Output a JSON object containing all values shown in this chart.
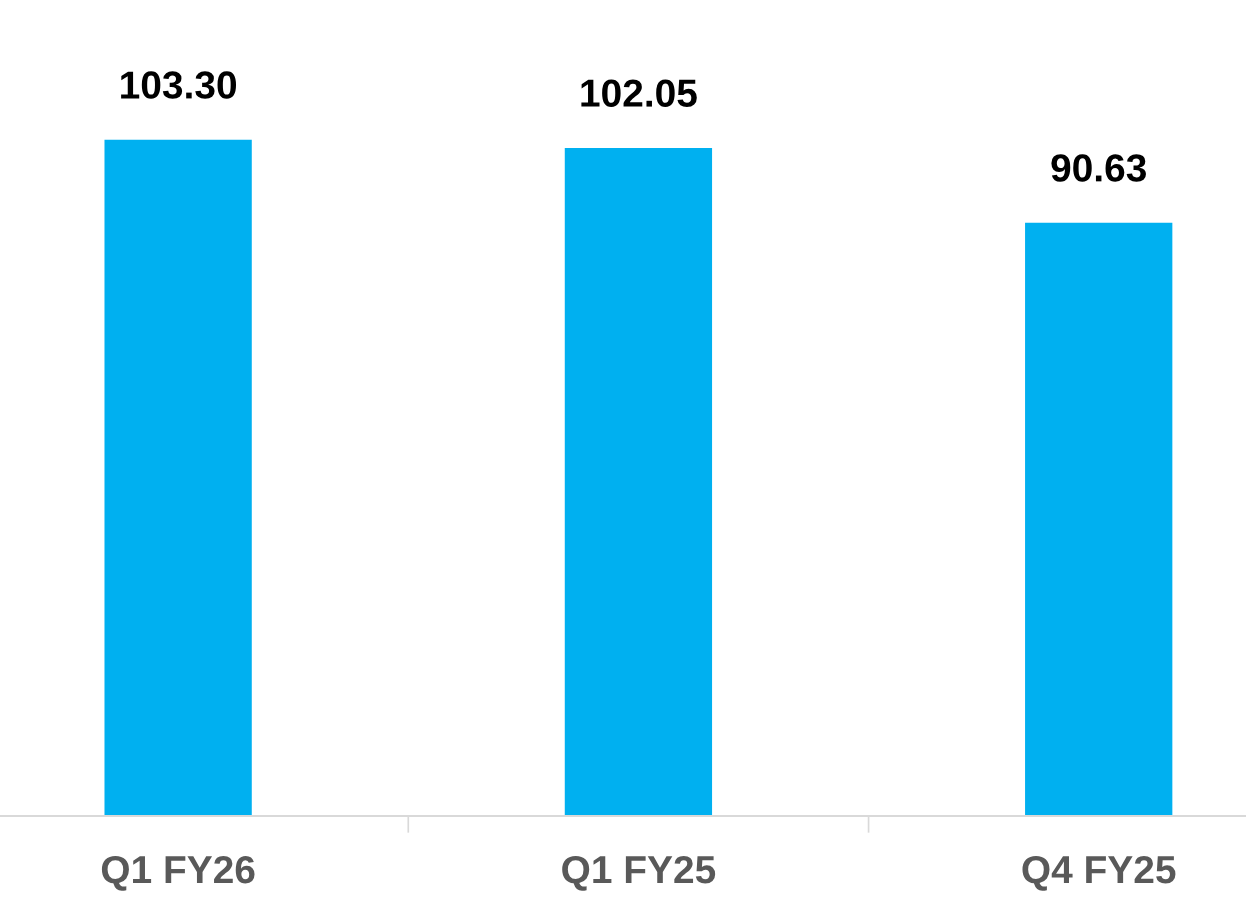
{
  "chart_data": {
    "type": "bar",
    "categories": [
      "Q1 FY26",
      "Q1 FY25",
      "Q4 FY25"
    ],
    "values": [
      103.3,
      102.05,
      90.63
    ],
    "value_labels": [
      "103.30",
      "102.05",
      "90.63"
    ],
    "color": "#00b0f0",
    "tick_labels": "x",
    "grid": false,
    "legend": false
  }
}
